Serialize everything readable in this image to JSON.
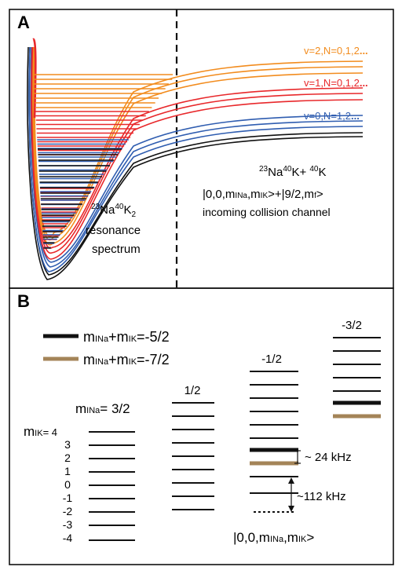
{
  "panelA": {
    "letter": "A",
    "vib_labels": [
      {
        "text": "v=2,N=0,1,2",
        "color": "#f28c1e"
      },
      {
        "text": "v=1,N=0,1,2",
        "color": "#e8282b"
      },
      {
        "text": "v=0,N=1,2",
        "color": "#2f5db0"
      }
    ],
    "vib_dots": "...",
    "resonance_label": {
      "pre": "23",
      "mid1": "Na",
      "sup2": "40",
      "mid2": "K",
      "sub": "2",
      "line2": "resonance",
      "line3": "spectrum"
    },
    "channel_label": {
      "line1_pre": "23",
      "line1_a": "Na",
      "line1_sup": "40",
      "line1_b": "K+ ",
      "line1_sup2": "40",
      "line1_c": "K",
      "line2_a": "|0,0,m",
      "line2_sub1": "I",
      "line2_sub1b": "Na",
      "line2_b": ",m",
      "line2_sub2": "I",
      "line2_sub2b": "K",
      "line2_c": ">+|9/2,m",
      "line2_sub3": "f",
      "line2_d": ">",
      "line3": "incoming collision channel"
    }
  },
  "panelB": {
    "letter": "B",
    "legend": [
      {
        "prefix": "m",
        "sub1": "INa",
        "mid": "+m",
        "sub2": "IK",
        "suffix": "=-5/2",
        "color": "#111111"
      },
      {
        "prefix": "m",
        "sub1": "INa",
        "mid": "+m",
        "sub2": "IK",
        "suffix": "=-7/2",
        "color": "#a48458"
      }
    ],
    "mina_label": {
      "prefix": "m",
      "sub": "INa",
      "suffix": "= 3/2"
    },
    "mik_label": {
      "prefix": "m",
      "sub": "IK",
      "suffix": "= 4"
    },
    "mik_ticks": [
      "3",
      "2",
      "1",
      "0",
      "-1",
      "-2",
      "-3",
      "-4"
    ],
    "column_labels": [
      "1/2",
      "-1/2",
      "-3/2"
    ],
    "khz_small": "~ 24 kHz",
    "khz_large": "~112 kHz",
    "basis_label": {
      "a": "|0,0,m",
      "sub1": "INa",
      "b": ",m",
      "sub2": "IK",
      "c": ">"
    }
  }
}
